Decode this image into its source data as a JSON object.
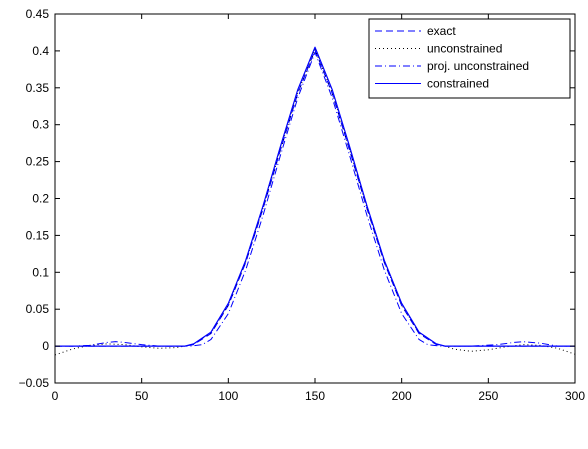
{
  "chart_data": {
    "type": "line",
    "title": "",
    "xlabel": "",
    "ylabel": "",
    "xlim": [
      0,
      300
    ],
    "ylim": [
      -0.05,
      0.45
    ],
    "xticks": [
      0,
      50,
      100,
      150,
      200,
      250,
      300
    ],
    "yticks": [
      -0.05,
      0,
      0.05,
      0.1,
      0.15,
      0.2,
      0.25,
      0.3,
      0.35,
      0.4,
      0.45
    ],
    "xtick_labels": [
      "0",
      "50",
      "100",
      "150",
      "200",
      "250",
      "300"
    ],
    "ytick_labels": [
      "−0.05",
      "0",
      "0.05",
      "0.1",
      "0.15",
      "0.2",
      "0.25",
      "0.3",
      "0.35",
      "0.4",
      "0.45"
    ],
    "grid": false,
    "legend_position": "top-right",
    "series": [
      {
        "name": "exact",
        "style": "dashed",
        "color": "#0000ff",
        "x": [
          0,
          20,
          40,
          60,
          75,
          80,
          90,
          100,
          110,
          120,
          130,
          140,
          150,
          160,
          170,
          180,
          190,
          200,
          210,
          220,
          225,
          240,
          260,
          280,
          300
        ],
        "y": [
          0,
          0,
          0,
          0,
          0,
          0.002,
          0.017,
          0.055,
          0.113,
          0.186,
          0.265,
          0.342,
          0.401,
          0.342,
          0.265,
          0.186,
          0.113,
          0.055,
          0.017,
          0.002,
          0,
          0,
          0,
          0,
          0
        ]
      },
      {
        "name": "unconstrained",
        "style": "dotted",
        "color": "#000000",
        "x": [
          0,
          5,
          10,
          20,
          30,
          40,
          50,
          60,
          70,
          75,
          80,
          90,
          100,
          110,
          120,
          130,
          140,
          150,
          160,
          170,
          180,
          190,
          200,
          210,
          220,
          225,
          230,
          240,
          250,
          260,
          270,
          280,
          290,
          295,
          300
        ],
        "y": [
          -0.012,
          -0.008,
          -0.004,
          0.001,
          0.003,
          0.002,
          -0.001,
          -0.003,
          -0.002,
          0.0,
          0.003,
          0.018,
          0.056,
          0.114,
          0.187,
          0.266,
          0.343,
          0.402,
          0.343,
          0.266,
          0.187,
          0.114,
          0.056,
          0.018,
          0.003,
          0.0,
          -0.004,
          -0.007,
          -0.005,
          -0.001,
          0.002,
          0.001,
          -0.003,
          -0.007,
          -0.011
        ]
      },
      {
        "name": "proj. unconstrained",
        "style": "dashdot",
        "color": "#0000ff",
        "x": [
          0,
          10,
          20,
          30,
          35,
          40,
          50,
          60,
          70,
          78,
          85,
          90,
          100,
          110,
          120,
          130,
          140,
          150,
          160,
          170,
          180,
          190,
          200,
          210,
          215,
          222,
          230,
          240,
          255,
          265,
          270,
          280,
          290,
          300
        ],
        "y": [
          0,
          0.0,
          0.001,
          0.005,
          0.006,
          0.005,
          0.002,
          0.0,
          0.0,
          0.0,
          0.002,
          0.009,
          0.044,
          0.103,
          0.177,
          0.258,
          0.336,
          0.398,
          0.336,
          0.258,
          0.177,
          0.103,
          0.044,
          0.009,
          0.002,
          0.0,
          0.0,
          0.0,
          0.002,
          0.005,
          0.006,
          0.004,
          0.0,
          0
        ]
      },
      {
        "name": "constrained",
        "style": "solid",
        "color": "#0000ff",
        "x": [
          0,
          20,
          40,
          60,
          75,
          80,
          90,
          100,
          110,
          120,
          130,
          140,
          150,
          160,
          170,
          180,
          190,
          200,
          210,
          220,
          225,
          240,
          260,
          280,
          300
        ],
        "y": [
          0,
          0,
          0,
          0,
          0,
          0.003,
          0.019,
          0.058,
          0.116,
          0.19,
          0.27,
          0.347,
          0.405,
          0.347,
          0.27,
          0.19,
          0.116,
          0.058,
          0.019,
          0.003,
          0,
          0,
          0,
          0,
          0
        ]
      }
    ]
  }
}
